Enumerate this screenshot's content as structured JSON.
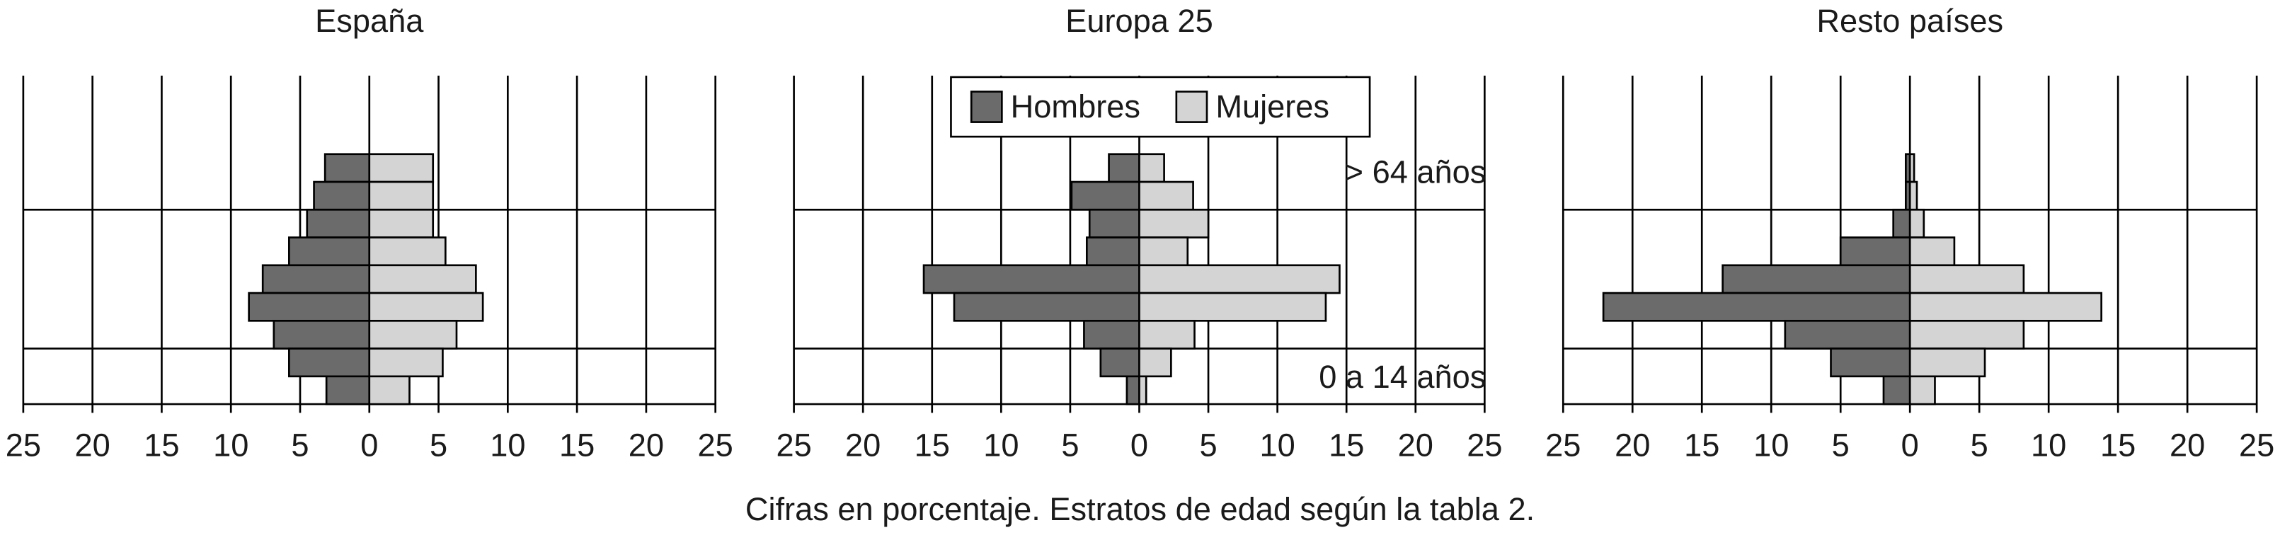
{
  "chart_data": [
    {
      "type": "pyramid",
      "title": "España",
      "categories": [
        null,
        null,
        null,
        null,
        null,
        null,
        null,
        null,
        null
      ],
      "series": [
        {
          "name": "Hombres",
          "color": "#6b6b6b",
          "side": "left",
          "values": [
            3.2,
            4.0,
            4.5,
            5.8,
            7.7,
            8.7,
            6.9,
            5.8,
            3.1
          ]
        },
        {
          "name": "Mujeres",
          "color": "#d4d4d4",
          "side": "right",
          "values": [
            4.6,
            4.6,
            4.6,
            5.5,
            7.7,
            8.2,
            6.3,
            5.3,
            2.9
          ]
        }
      ],
      "xlim": [
        -25,
        25
      ],
      "xticks": [
        {
          "value": -25,
          "label": "25"
        },
        {
          "value": -20,
          "label": "20"
        },
        {
          "value": -15,
          "label": "15"
        },
        {
          "value": -10,
          "label": "10"
        },
        {
          "value": -5,
          "label": "5"
        },
        0,
        5,
        10,
        15,
        20,
        25
      ],
      "grid": true,
      "legend": false
    },
    {
      "type": "pyramid",
      "title": "Europa 25",
      "categories": [
        null,
        null,
        null,
        null,
        null,
        null,
        null,
        null,
        null
      ],
      "series": [
        {
          "name": "Hombres",
          "color": "#6b6b6b",
          "side": "left",
          "values": [
            2.2,
            4.9,
            3.6,
            3.8,
            15.6,
            13.4,
            4.0,
            2.8,
            0.9
          ]
        },
        {
          "name": "Mujeres",
          "color": "#d4d4d4",
          "side": "right",
          "values": [
            1.8,
            3.9,
            5.0,
            3.5,
            14.5,
            13.5,
            4.0,
            2.3,
            0.5
          ]
        }
      ],
      "xlim": [
        -25,
        25
      ],
      "xticks": [
        {
          "value": -25,
          "label": "25"
        },
        {
          "value": -20,
          "label": "20"
        },
        {
          "value": -15,
          "label": "15"
        },
        {
          "value": -10,
          "label": "10"
        },
        {
          "value": -5,
          "label": "5"
        },
        0,
        5,
        10,
        15,
        20,
        25
      ],
      "grid": true,
      "legend": true,
      "annotations": [
        "> 64 años",
        "0 a 14 años"
      ]
    },
    {
      "type": "pyramid",
      "title": "Resto países",
      "categories": [
        null,
        null,
        null,
        null,
        null,
        null,
        null,
        null,
        null
      ],
      "series": [
        {
          "name": "Hombres",
          "color": "#6b6b6b",
          "side": "left",
          "values": [
            0.3,
            0.3,
            1.2,
            5.0,
            13.5,
            22.1,
            9.0,
            5.7,
            1.9
          ]
        },
        {
          "name": "Mujeres",
          "color": "#d4d4d4",
          "side": "right",
          "values": [
            0.3,
            0.5,
            1.0,
            3.2,
            8.2,
            13.8,
            8.2,
            5.4,
            1.8
          ]
        }
      ],
      "xlim": [
        -25,
        25
      ],
      "xticks": [
        {
          "value": -25,
          "label": "25"
        },
        {
          "value": -20,
          "label": "20"
        },
        {
          "value": -15,
          "label": "15"
        },
        {
          "value": -10,
          "label": "10"
        },
        {
          "value": -5,
          "label": "5"
        },
        0,
        5,
        10,
        15,
        20,
        25
      ],
      "grid": true,
      "legend": false
    }
  ],
  "caption": "Cifras en porcentaje. Estratos de edad según la tabla 2."
}
